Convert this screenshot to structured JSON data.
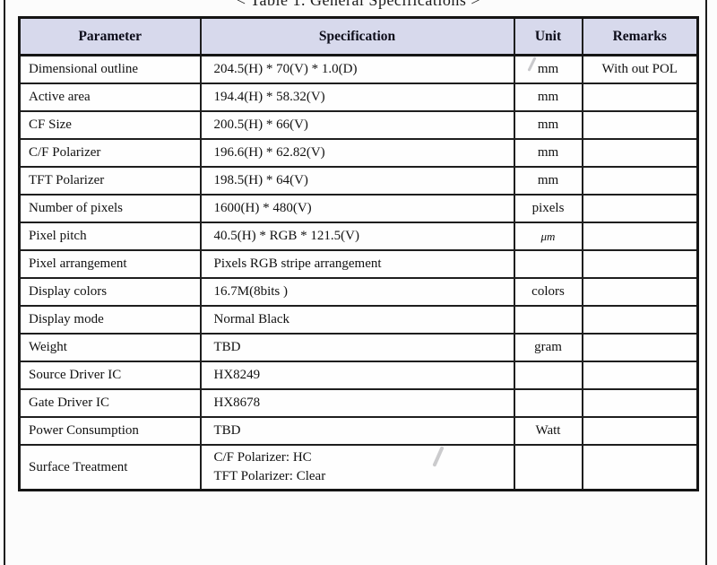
{
  "page": {
    "title": "< Table 1. General Specifications >"
  },
  "table": {
    "headers": [
      "Parameter",
      "Specification",
      "Unit",
      "Remarks"
    ],
    "rows": [
      {
        "parameter": "Dimensional outline",
        "specification": "204.5(H)  * 70(V) * 1.0(D)",
        "unit": "mm",
        "remarks": "With out POL"
      },
      {
        "parameter": "Active area",
        "specification": "194.4(H) * 58.32(V)",
        "unit": "mm",
        "remarks": ""
      },
      {
        "parameter": "CF Size",
        "specification": "200.5(H) * 66(V)",
        "unit": "mm",
        "remarks": ""
      },
      {
        "parameter": "C/F Polarizer",
        "specification": "196.6(H) * 62.82(V)",
        "unit": "mm",
        "remarks": ""
      },
      {
        "parameter": "TFT Polarizer",
        "specification": "198.5(H) * 64(V)",
        "unit": "mm",
        "remarks": ""
      },
      {
        "parameter": "Number of pixels",
        "specification": "1600(H) * 480(V)",
        "unit": "pixels",
        "remarks": ""
      },
      {
        "parameter": "Pixel pitch",
        "specification": "40.5(H) * RGB * 121.5(V)",
        "unit": "μm",
        "remarks": ""
      },
      {
        "parameter": "Pixel arrangement",
        "specification": "Pixels RGB stripe arrangement",
        "unit": "",
        "remarks": ""
      },
      {
        "parameter": "Display colors",
        "specification": "16.7M(8bits )",
        "unit": "colors",
        "remarks": ""
      },
      {
        "parameter": "Display mode",
        "specification": "Normal Black",
        "unit": "",
        "remarks": ""
      },
      {
        "parameter": "Weight",
        "specification": "TBD",
        "unit": "gram",
        "remarks": ""
      },
      {
        "parameter": "Source Driver IC",
        "specification": "HX8249",
        "unit": "",
        "remarks": ""
      },
      {
        "parameter": "Gate Driver IC",
        "specification": "HX8678",
        "unit": "",
        "remarks": ""
      },
      {
        "parameter": "Power Consumption",
        "specification": "TBD",
        "unit": "Watt",
        "remarks": ""
      },
      {
        "parameter": "Surface Treatment",
        "specification": "C/F Polarizer: HC\nTFT Polarizer: Clear",
        "unit": "",
        "remarks": ""
      }
    ]
  },
  "colors": {
    "header_bg": "#d7d9ec",
    "table_border": "#151515",
    "page_bg": "#fcfcfc",
    "text": "#111111"
  }
}
